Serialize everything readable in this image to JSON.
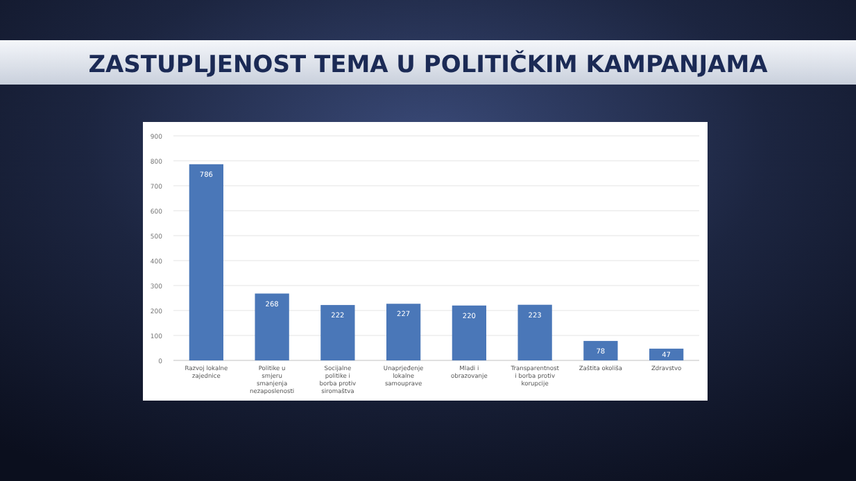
{
  "chart_data": {
    "type": "bar",
    "title": "ZASTUPLJENOST TEMA U POLITIČKIM KAMPANJAMA",
    "categories": [
      "Razvoj lokalne zajednice",
      "Politike u smjeru smanjenja nezaposlenosti",
      "Socijalne politike i borba protiv siromaštva",
      "Unaprjeđenje lokalne samouprave",
      "Mladi i obrazovanje",
      "Transparentnost i borba protiv korupcije",
      "Zaštita okoliša",
      "Zdravstvo"
    ],
    "values": [
      786,
      268,
      222,
      227,
      220,
      223,
      78,
      47
    ],
    "color": "#4a77b8",
    "ylim": [
      0,
      900
    ],
    "yticks": [
      0,
      100,
      200,
      300,
      400,
      500,
      600,
      700,
      800,
      900
    ],
    "grid": "y",
    "data_labels": true
  }
}
